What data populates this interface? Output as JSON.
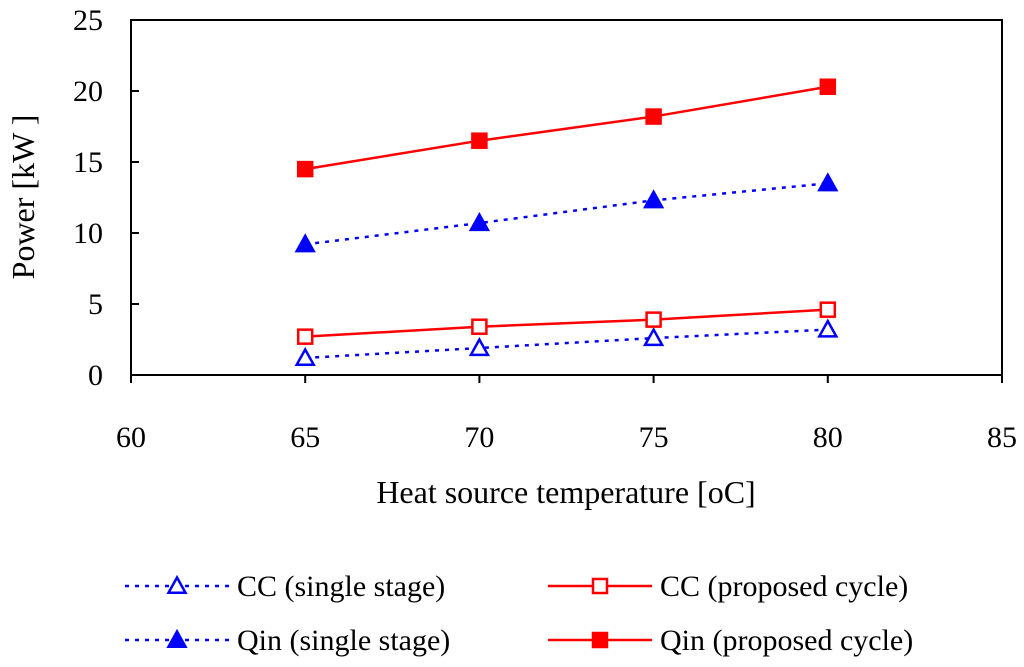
{
  "chart_data": {
    "type": "line",
    "title": "",
    "xlabel": "Heat source temperature [oC]",
    "ylabel": "Power [kW ]",
    "xlim": [
      60,
      85
    ],
    "ylim": [
      0,
      25
    ],
    "x_ticks": [
      "60",
      "65",
      "70",
      "75",
      "80",
      "85"
    ],
    "y_ticks": [
      "0",
      "5",
      "10",
      "15",
      "20",
      "25"
    ],
    "x": [
      65,
      70,
      75,
      80
    ],
    "series": [
      {
        "name": "CC (single stage)",
        "values": [
          1.2,
          1.9,
          2.6,
          3.2
        ],
        "color": "#0000ff",
        "line": "dotted",
        "marker": "triangle-open"
      },
      {
        "name": "CC (proposed cycle)",
        "values": [
          2.7,
          3.4,
          3.9,
          4.6
        ],
        "color": "#ff0000",
        "line": "solid",
        "marker": "square-open"
      },
      {
        "name": "Qin (single stage)",
        "values": [
          9.2,
          10.7,
          12.3,
          13.5
        ],
        "color": "#0000ff",
        "line": "dotted",
        "marker": "triangle-filled"
      },
      {
        "name": "Qin (proposed cycle)",
        "values": [
          14.5,
          16.5,
          18.2,
          20.3
        ],
        "color": "#ff0000",
        "line": "solid",
        "marker": "square-filled"
      }
    ],
    "legend_order": [
      0,
      1,
      2,
      3
    ],
    "legend_placement": "bottom"
  }
}
